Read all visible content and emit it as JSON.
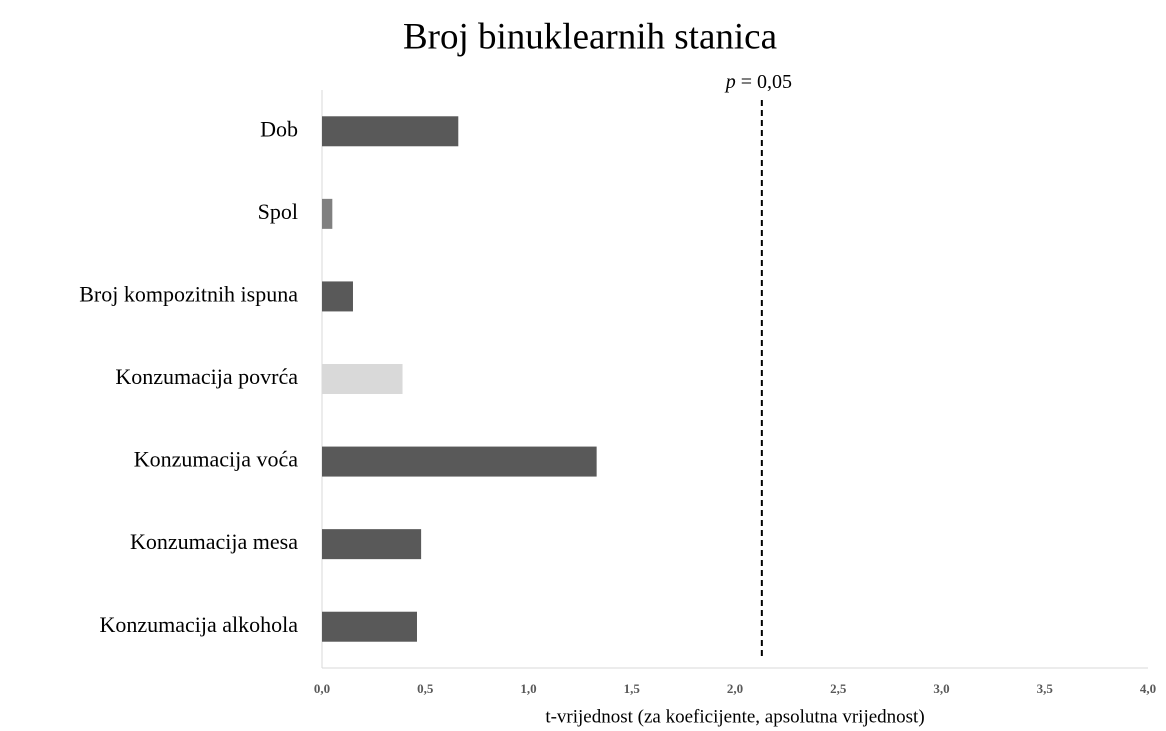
{
  "chart_data": {
    "type": "bar",
    "orientation": "horizontal",
    "title": "Broj binuklearnih stanica",
    "x_label": "t-vrijednost (za koeficijente, apsolutna vrijednost)",
    "categories": [
      "Dob",
      "Spol",
      "Broj kompozitnih ispuna",
      "Konzumacija povrća",
      "Konzumacija voća",
      "Konzumacija mesa",
      "Konzumacija alkohola"
    ],
    "values": [
      0.66,
      0.05,
      0.15,
      0.39,
      1.33,
      0.48,
      0.46
    ],
    "colors": [
      "#595959",
      "#808080",
      "#595959",
      "#d9d9d9",
      "#595959",
      "#595959",
      "#595959"
    ],
    "xlim": [
      0,
      4
    ],
    "xticks": [
      {
        "value": 0,
        "label": "0,0"
      },
      {
        "value": 0.5,
        "label": "0,5"
      },
      {
        "value": 1,
        "label": "1,0"
      },
      {
        "value": 1.5,
        "label": "1,5"
      },
      {
        "value": 2,
        "label": "2,0"
      },
      {
        "value": 2.5,
        "label": "2,5"
      },
      {
        "value": 3,
        "label": "3,0"
      },
      {
        "value": 3.5,
        "label": "3,5"
      },
      {
        "value": 4,
        "label": "4,0"
      }
    ],
    "annotation": {
      "label_italic": "p",
      "label": "= 0,05",
      "x": 2.13
    },
    "grid": false
  }
}
